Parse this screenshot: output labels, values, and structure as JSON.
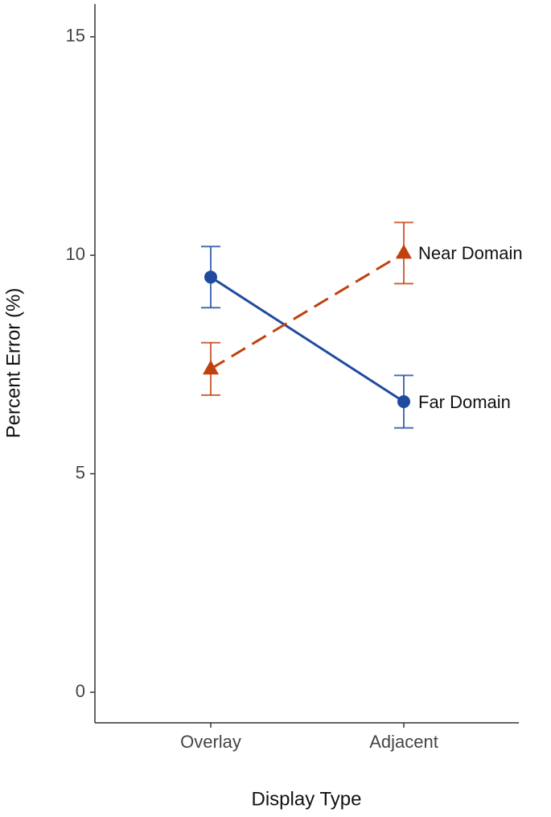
{
  "chart_data": {
    "type": "line",
    "xlabel": "Display Type",
    "ylabel": "Percent Error (%)",
    "categories": [
      "Overlay",
      "Adjacent"
    ],
    "series": [
      {
        "name": "Far Domain",
        "color": "#1f4aa0",
        "marker": "circle",
        "dash": "solid",
        "values": [
          9.5,
          6.65
        ],
        "errors": [
          0.7,
          0.6
        ]
      },
      {
        "name": "Near Domain",
        "color": "#c0410e",
        "marker": "triangle",
        "dash": "dashed",
        "values": [
          7.4,
          10.05
        ],
        "errors": [
          0.6,
          0.7
        ]
      }
    ],
    "ylim": [
      -0.7,
      15.75
    ],
    "yticks": [
      0,
      5,
      10,
      15
    ],
    "grid": false
  }
}
